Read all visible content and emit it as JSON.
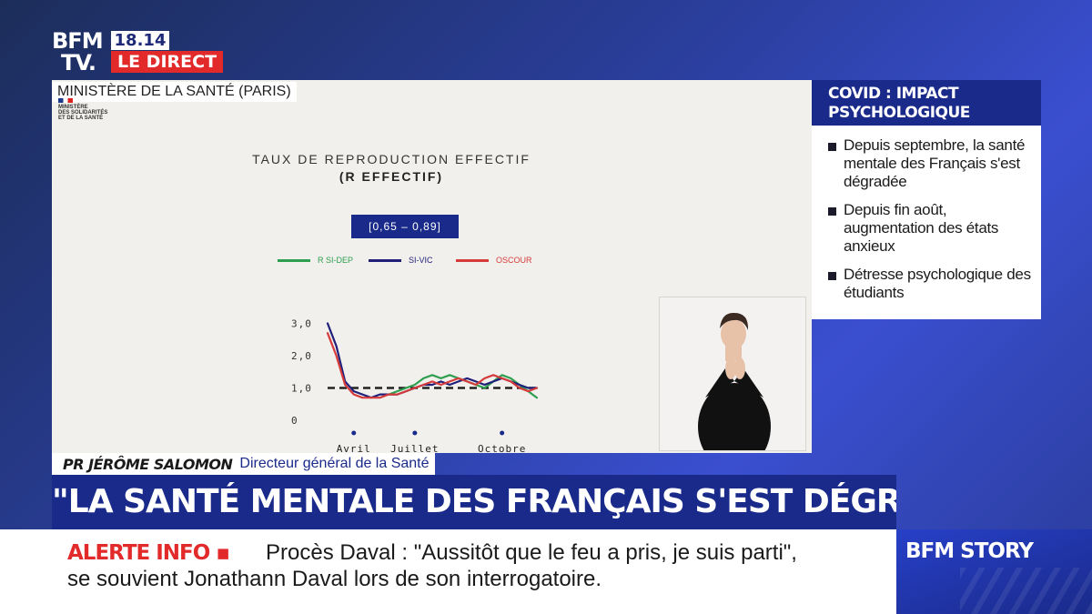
{
  "logo": {
    "line1": "BFM",
    "line2": "TV."
  },
  "header": {
    "time": "18.14",
    "live_label": "LE DIRECT"
  },
  "location": "MINISTÈRE DE LA SANTÉ (PARIS)",
  "ministry": {
    "line1": "MINISTÈRE",
    "line2": "DES SOLIDARITÉS",
    "line3": "ET DE LA SANTÉ"
  },
  "info_box": {
    "title_line1": "COVID : IMPACT",
    "title_line2": "PSYCHOLOGIQUE",
    "items": [
      "Depuis septembre, la santé mentale des Français s'est dégradée",
      "Depuis fin août, augmentation des états anxieux",
      "Détresse psychologique des étudiants"
    ]
  },
  "chart_data": {
    "type": "line",
    "title": "TAUX DE REPRODUCTION EFFECTIF",
    "subtitle": "(R EFFECTIF)",
    "range_label": "[0,65 – 0,89]",
    "y_tick_labels": [
      "3,0",
      "2,0",
      "1,0",
      "0"
    ],
    "y_ticks": [
      3.0,
      2.0,
      1.0,
      0
    ],
    "x_tick_labels": [
      "Avril",
      "Juillet",
      "Octobre"
    ],
    "ylim": [
      0,
      3.1
    ],
    "reference_line": 1.0,
    "grid": false,
    "legend_position": "top",
    "x": [
      0,
      1,
      2,
      3,
      4,
      5,
      6,
      7,
      8,
      9,
      10,
      11,
      12,
      13,
      14,
      15,
      16,
      17,
      18,
      19,
      20,
      21,
      22,
      23,
      24
    ],
    "series": [
      {
        "name": "R SI-DEP",
        "color": "#2e9e4f",
        "values": [
          null,
          null,
          null,
          null,
          null,
          null,
          null,
          0.8,
          0.9,
          1.0,
          1.1,
          1.3,
          1.4,
          1.3,
          1.4,
          1.3,
          1.2,
          1.1,
          1.0,
          1.2,
          1.4,
          1.3,
          1.1,
          0.9,
          0.7
        ]
      },
      {
        "name": "SI-VIC",
        "color": "#1f1f7a",
        "values": [
          3.0,
          2.3,
          1.2,
          0.9,
          0.8,
          0.7,
          0.8,
          0.8,
          0.8,
          0.9,
          1.0,
          1.1,
          1.1,
          1.2,
          1.1,
          1.2,
          1.3,
          1.2,
          1.1,
          1.2,
          1.3,
          1.2,
          1.1,
          1.0,
          1.0
        ]
      },
      {
        "name": "OSCOUR",
        "color": "#d63b3b",
        "values": [
          2.7,
          2.0,
          1.1,
          0.8,
          0.7,
          0.7,
          0.7,
          0.8,
          0.8,
          0.9,
          1.0,
          1.1,
          1.2,
          1.1,
          1.2,
          1.3,
          1.2,
          1.1,
          1.3,
          1.4,
          1.3,
          1.2,
          1.0,
          0.9,
          1.0
        ]
      }
    ],
    "x_tick_index": [
      3,
      10,
      20
    ]
  },
  "namebar": {
    "name": "PR JÉRÔME SALOMON",
    "role": "Directeur général de la Santé"
  },
  "headline": "\"LA SANTÉ MENTALE DES FRANÇAIS S'EST DÉGRADÉE\"",
  "ticker": {
    "label": "ALERTE INFO ▪",
    "line1": "Procès Daval : \"Aussitôt que le feu a pris, je suis parti\",",
    "line2": "se souvient Jonathann Daval lors de son interrogatoire."
  },
  "story_label": "BFM STORY"
}
